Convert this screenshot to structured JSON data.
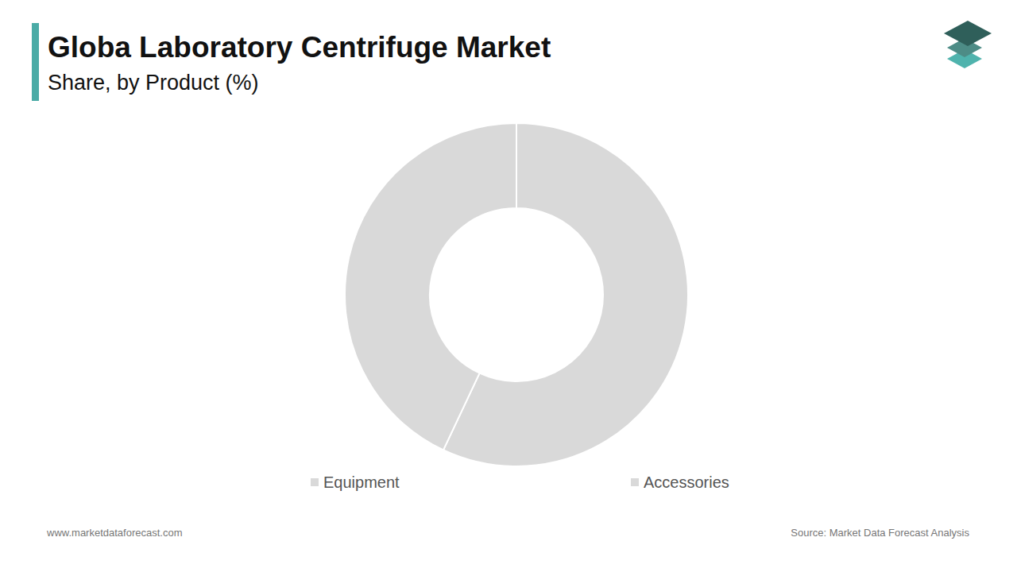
{
  "chart_data": {
    "type": "donut",
    "title": "Globa Laboratory Centrifuge Market",
    "subtitle": "Share, by Product (%)",
    "categories": [
      "Equipment",
      "Accessories"
    ],
    "values": [
      57,
      43
    ],
    "colors": [
      "#d9d9d9",
      "#d9d9d9"
    ],
    "legend": "bottom",
    "data_labels": false,
    "website": "www.marketdataforecast.com",
    "source": "Source: Market Data Forecast Analysis"
  }
}
